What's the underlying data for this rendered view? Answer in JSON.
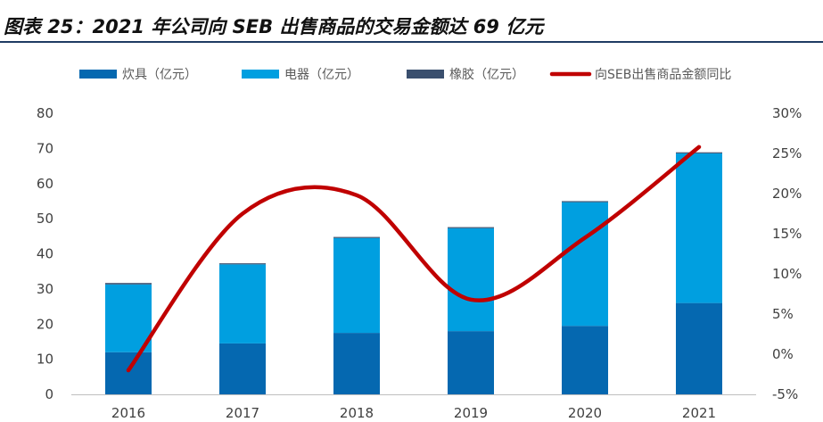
{
  "figure_title": "图表 25：2021 年公司向 SEB 出售商品的交易金额达 69 亿元",
  "colors": {
    "cookware": "#0568b0",
    "appliances": "#009fe0",
    "rubber": "#3a4f6e",
    "ratio_line": "#c00000",
    "title_rule": "#1f3b63"
  },
  "chart_data": {
    "type": "bar",
    "stacked": true,
    "categories": [
      "2016",
      "2017",
      "2018",
      "2019",
      "2020",
      "2021"
    ],
    "series": [
      {
        "name": "炊具（亿元）",
        "type": "bar",
        "axis": "left",
        "values": [
          12,
          14.5,
          17.5,
          18,
          19.5,
          26
        ]
      },
      {
        "name": "电器（亿元）",
        "type": "bar",
        "axis": "left",
        "values": [
          19.3,
          22.5,
          27,
          29.3,
          35.2,
          42.6
        ]
      },
      {
        "name": "橡胶（亿元）",
        "type": "bar",
        "axis": "left",
        "values": [
          0.4,
          0.3,
          0.3,
          0.3,
          0.3,
          0.3
        ]
      },
      {
        "name": "向SEB出售商品金额同比",
        "type": "line",
        "axis": "right",
        "values": [
          -2.0,
          17.5,
          19.8,
          6.8,
          14.5,
          25.8
        ]
      }
    ],
    "left_axis": {
      "ylim": [
        0,
        80
      ],
      "ticks": [
        "0",
        "10",
        "20",
        "30",
        "40",
        "50",
        "60",
        "70",
        "80"
      ]
    },
    "right_axis": {
      "ylim": [
        -5,
        30
      ],
      "ticks": [
        "-5%",
        "0%",
        "5%",
        "10%",
        "15%",
        "20%",
        "25%",
        "30%"
      ]
    },
    "legend": "top",
    "grid": false
  }
}
